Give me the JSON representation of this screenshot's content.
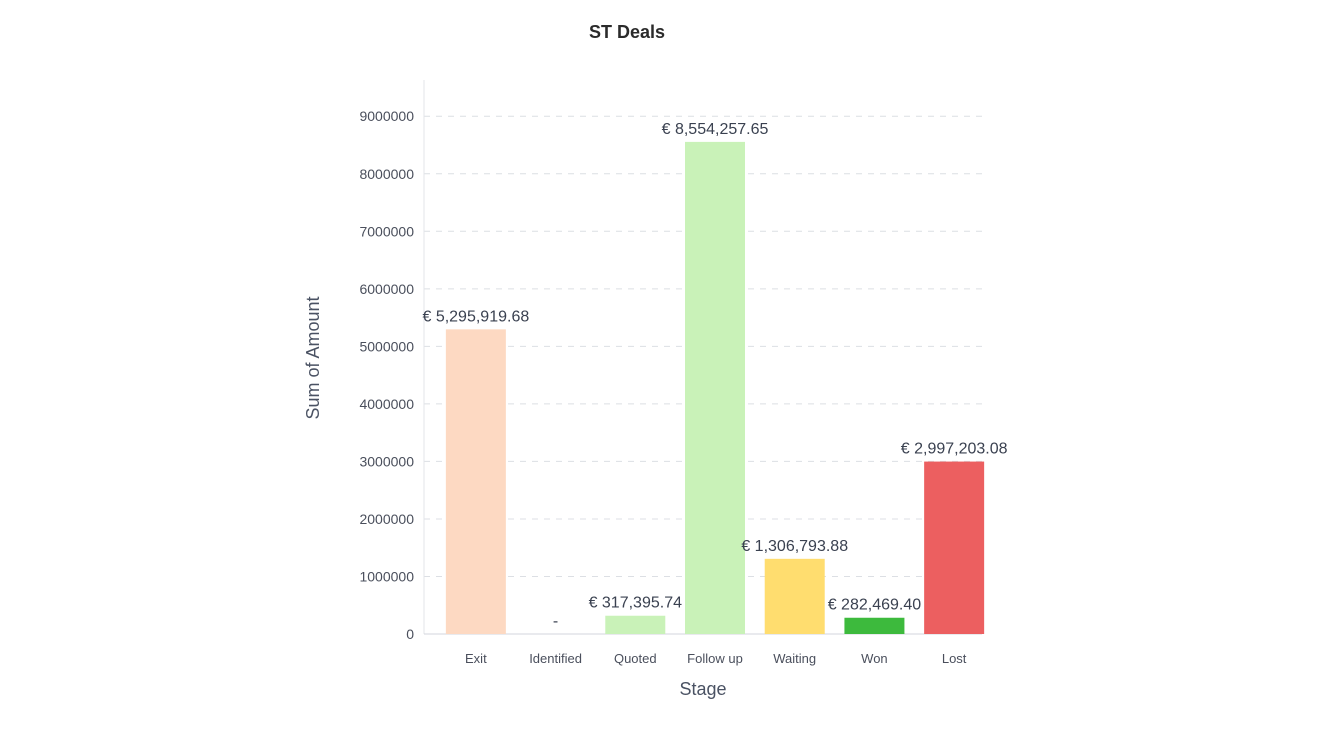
{
  "chart_data": {
    "type": "bar",
    "title": "ST Deals",
    "xlabel": "Stage",
    "ylabel": "Sum of Amount",
    "categories": [
      "Exit",
      "Identified",
      "Quoted",
      "Follow up",
      "Waiting",
      "Won",
      "Lost"
    ],
    "values": [
      5295919.68,
      0,
      317395.74,
      8554257.65,
      1306793.88,
      282469.4,
      2997203.08
    ],
    "data_labels": [
      "€ 5,295,919.68",
      "-",
      "€ 317,395.74",
      "€ 8,554,257.65",
      "€ 1,306,793.88",
      "€ 282,469.40",
      "€ 2,997,203.08"
    ],
    "colors": [
      "#fdd9c2",
      "#c9f2b8",
      "#c9f2b8",
      "#c9f2b8",
      "#ffdd6f",
      "#3dba3d",
      "#ec5f60"
    ],
    "yticks": [
      0,
      1000000,
      2000000,
      3000000,
      4000000,
      5000000,
      6000000,
      7000000,
      8000000,
      9000000
    ],
    "ylim": [
      0,
      9630000
    ],
    "grid": true,
    "legend": "none"
  }
}
